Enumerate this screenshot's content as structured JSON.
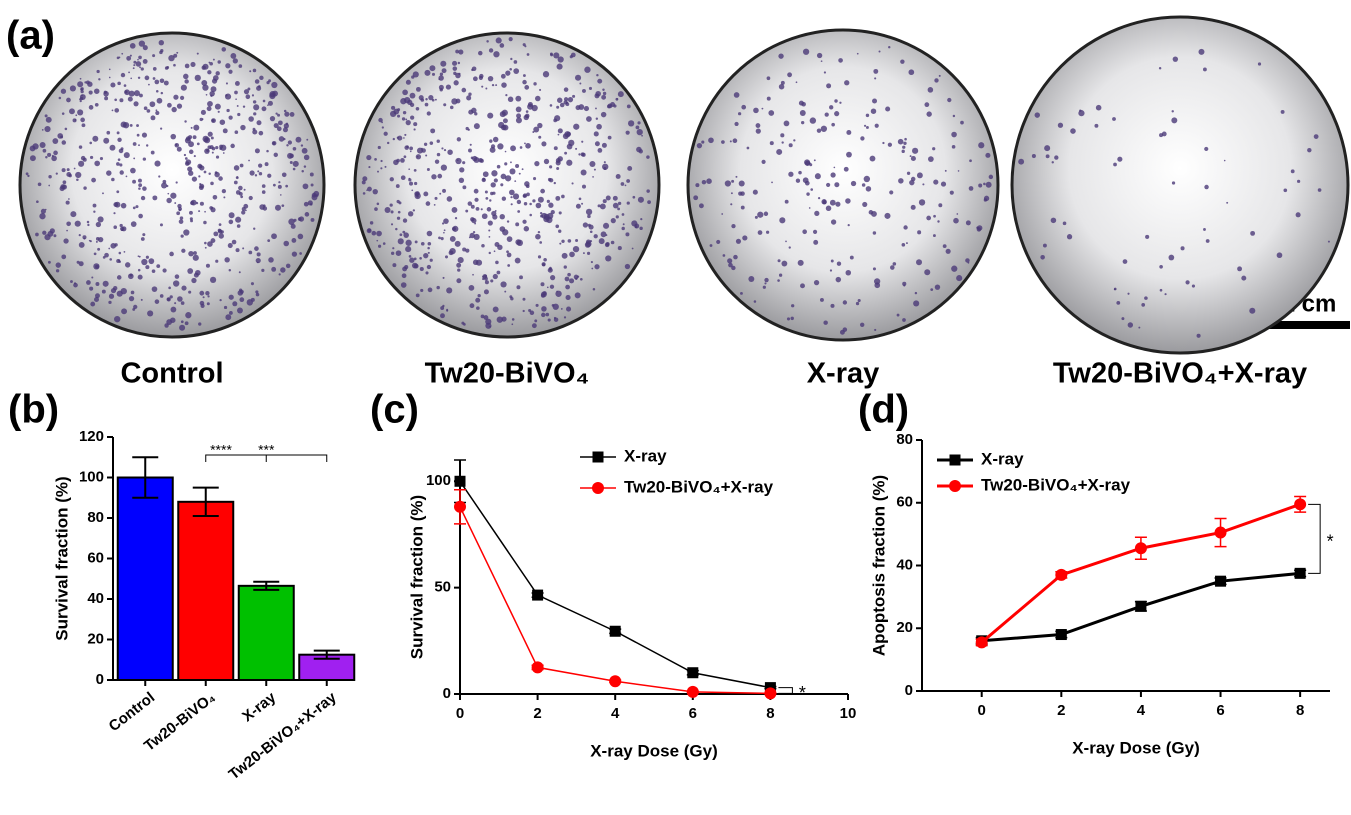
{
  "panel_a": {
    "label": "(a)",
    "images": [
      {
        "label": "Control"
      },
      {
        "label": "Tw20-BiVO₄"
      },
      {
        "label": "X-ray"
      },
      {
        "label": "Tw20-BiVO₄+X-ray"
      }
    ],
    "scale_bar": "1 cm"
  },
  "chart_data": [
    {
      "panel_label": "(b)",
      "type": "bar",
      "y_label": "Survival fraction (%)",
      "categories": [
        "Control",
        "Tw20-BiVO₄",
        "X-ray",
        "Tw20-BiVO₄+X-ray"
      ],
      "values": [
        100,
        88,
        46.5,
        12.5
      ],
      "errors": [
        10,
        7,
        2,
        2
      ],
      "colors": [
        "#0000ff",
        "#ff0000",
        "#00c000",
        "#a020f0"
      ],
      "ylim": [
        0,
        120
      ],
      "yticks": [
        0,
        20,
        40,
        60,
        80,
        100,
        120
      ],
      "annotations": [
        "****",
        "***"
      ]
    },
    {
      "panel_label": "(c)",
      "type": "line",
      "x_label": "X-ray Dose (Gy)",
      "y_label": "Survival fraction (%)",
      "x": [
        0,
        2,
        4,
        6,
        8
      ],
      "series": [
        {
          "name": "X-ray",
          "color": "#000000",
          "marker": "square",
          "values": [
            100,
            46.5,
            29.5,
            10,
            3
          ],
          "errors": [
            10,
            1,
            1,
            1,
            0.5
          ]
        },
        {
          "name": "Tw20-BiVO₄+X-ray",
          "color": "#ff0000",
          "marker": "circle",
          "values": [
            88,
            12.5,
            6,
            1,
            0.3
          ],
          "errors": [
            8,
            1,
            0.5,
            0.3,
            0.1
          ]
        }
      ],
      "xlim": [
        0,
        10
      ],
      "xticks": [
        0,
        2,
        4,
        6,
        8,
        10
      ],
      "ylim": [
        0,
        110
      ],
      "yticks": [
        0,
        50,
        100
      ],
      "annotations": [
        "*"
      ],
      "legend": "upper right"
    },
    {
      "panel_label": "(d)",
      "type": "line",
      "x_label": "X-ray Dose (Gy)",
      "y_label": "Apoptosis fraction (%)",
      "x": [
        0,
        2,
        4,
        6,
        8
      ],
      "series": [
        {
          "name": "X-ray",
          "color": "#000000",
          "marker": "square",
          "values": [
            16,
            18,
            27,
            35,
            37.5
          ],
          "errors": [
            1,
            1,
            1.5,
            1,
            1
          ]
        },
        {
          "name": "Tw20-BiVO₄+X-ray",
          "color": "#ff0000",
          "marker": "circle",
          "values": [
            15.5,
            37,
            45.5,
            50.5,
            59.5
          ],
          "errors": [
            1,
            1,
            3.5,
            4.5,
            2.5
          ]
        }
      ],
      "xlim": [
        -1.5,
        8.75
      ],
      "xticks": [
        0,
        2,
        4,
        6,
        8
      ],
      "ylim": [
        0,
        80
      ],
      "yticks": [
        0,
        20,
        40,
        60,
        80
      ],
      "annotations": [
        "*"
      ],
      "legend": "upper left"
    }
  ]
}
